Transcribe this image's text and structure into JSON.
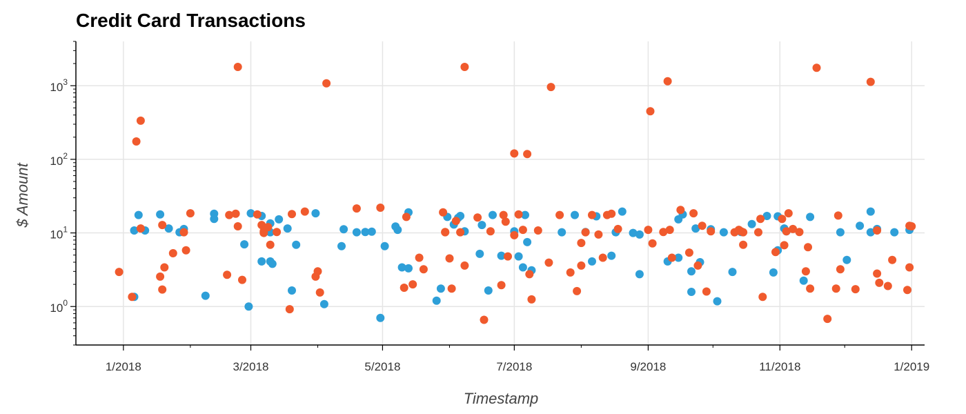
{
  "chart_data": {
    "type": "scatter",
    "title": "Credit Card Transactions",
    "xlabel": "Timestamp",
    "ylabel": "$ Amount",
    "yscale": "log",
    "ylim": [
      0.3,
      4000
    ],
    "xlim": [
      "2017-12-10",
      "2019-01-07"
    ],
    "grid": true,
    "x_ticks": [
      {
        "date": "2018-01-01",
        "label": "1/2018"
      },
      {
        "date": "2018-03-01",
        "label": "3/2018"
      },
      {
        "date": "2018-05-01",
        "label": "5/2018"
      },
      {
        "date": "2018-07-01",
        "label": "7/2018"
      },
      {
        "date": "2018-09-01",
        "label": "9/2018"
      },
      {
        "date": "2018-11-01",
        "label": "11/2018"
      },
      {
        "date": "2019-01-01",
        "label": "1/2019"
      }
    ],
    "y_ticks": [
      {
        "value": 1,
        "base": "10",
        "exp": "0"
      },
      {
        "value": 10,
        "base": "10",
        "exp": "1"
      },
      {
        "value": 100,
        "base": "10",
        "exp": "2"
      },
      {
        "value": 1000,
        "base": "10",
        "exp": "3"
      }
    ],
    "series": [
      {
        "color": "#2e9fd8",
        "points": [
          [
            "2018-01-06",
            1.35
          ],
          [
            "2018-01-06",
            10.8
          ],
          [
            "2018-01-08",
            17.5
          ],
          [
            "2018-01-11",
            10.8
          ],
          [
            "2018-01-18",
            17.8
          ],
          [
            "2018-01-22",
            11.5
          ],
          [
            "2018-01-27",
            10.2
          ],
          [
            "2018-01-29",
            11.3
          ],
          [
            "2018-02-08",
            1.4
          ],
          [
            "2018-02-12",
            18.2
          ],
          [
            "2018-02-12",
            15.5
          ],
          [
            "2018-02-26",
            7.0
          ],
          [
            "2018-02-28",
            1.0
          ],
          [
            "2018-03-01",
            18.5
          ],
          [
            "2018-03-06",
            17.0
          ],
          [
            "2018-03-06",
            4.1
          ],
          [
            "2018-03-10",
            13.5
          ],
          [
            "2018-03-10",
            10.2
          ],
          [
            "2018-03-10",
            4.1
          ],
          [
            "2018-03-11",
            3.8
          ],
          [
            "2018-03-14",
            15.3
          ],
          [
            "2018-03-18",
            11.5
          ],
          [
            "2018-03-20",
            1.65
          ],
          [
            "2018-03-22",
            6.9
          ],
          [
            "2018-03-31",
            18.5
          ],
          [
            "2018-04-04",
            1.08
          ],
          [
            "2018-04-12",
            6.6
          ],
          [
            "2018-04-13",
            11.2
          ],
          [
            "2018-04-19",
            10.2
          ],
          [
            "2018-04-23",
            10.3
          ],
          [
            "2018-04-26",
            10.4
          ],
          [
            "2018-04-30",
            0.7
          ],
          [
            "2018-05-02",
            6.6
          ],
          [
            "2018-05-07",
            12.2
          ],
          [
            "2018-05-08",
            11.0
          ],
          [
            "2018-05-10",
            3.4
          ],
          [
            "2018-05-13",
            3.3
          ],
          [
            "2018-05-13",
            19.0
          ],
          [
            "2018-05-26",
            1.2
          ],
          [
            "2018-05-28",
            1.75
          ],
          [
            "2018-05-31",
            16.5
          ],
          [
            "2018-06-03",
            13.0
          ],
          [
            "2018-06-05",
            16.0
          ],
          [
            "2018-06-06",
            17.0
          ],
          [
            "2018-06-08",
            10.5
          ],
          [
            "2018-06-15",
            5.2
          ],
          [
            "2018-06-16",
            12.8
          ],
          [
            "2018-06-19",
            1.65
          ],
          [
            "2018-06-21",
            17.5
          ],
          [
            "2018-06-25",
            4.9
          ],
          [
            "2018-07-01",
            10.5
          ],
          [
            "2018-07-03",
            4.8
          ],
          [
            "2018-07-05",
            3.4
          ],
          [
            "2018-07-06",
            17.5
          ],
          [
            "2018-07-07",
            7.5
          ],
          [
            "2018-07-09",
            3.1
          ],
          [
            "2018-07-23",
            10.2
          ],
          [
            "2018-07-29",
            17.5
          ],
          [
            "2018-08-03",
            10.3
          ],
          [
            "2018-08-06",
            4.1
          ],
          [
            "2018-08-08",
            16.8
          ],
          [
            "2018-08-15",
            4.9
          ],
          [
            "2018-08-17",
            10.2
          ],
          [
            "2018-08-20",
            19.5
          ],
          [
            "2018-08-25",
            10.0
          ],
          [
            "2018-08-28",
            2.75
          ],
          [
            "2018-08-28",
            9.5
          ],
          [
            "2018-09-10",
            4.1
          ],
          [
            "2018-09-15",
            4.6
          ],
          [
            "2018-09-15",
            15.3
          ],
          [
            "2018-09-17",
            17.8
          ],
          [
            "2018-09-21",
            3.0
          ],
          [
            "2018-09-21",
            1.58
          ],
          [
            "2018-09-23",
            11.5
          ],
          [
            "2018-09-25",
            4.0
          ],
          [
            "2018-09-30",
            11.2
          ],
          [
            "2018-10-03",
            1.18
          ],
          [
            "2018-10-06",
            10.2
          ],
          [
            "2018-10-10",
            2.95
          ],
          [
            "2018-10-14",
            10.3
          ],
          [
            "2018-10-19",
            13.2
          ],
          [
            "2018-10-26",
            17.0
          ],
          [
            "2018-10-29",
            2.9
          ],
          [
            "2018-10-31",
            16.8
          ],
          [
            "2018-10-31",
            5.8
          ],
          [
            "2018-11-03",
            11.5
          ],
          [
            "2018-11-04",
            10.5
          ],
          [
            "2018-11-12",
            2.25
          ],
          [
            "2018-11-15",
            16.5
          ],
          [
            "2018-11-29",
            10.2
          ],
          [
            "2018-12-02",
            4.3
          ],
          [
            "2018-12-08",
            12.5
          ],
          [
            "2018-12-13",
            19.5
          ],
          [
            "2018-12-13",
            10.2
          ],
          [
            "2018-12-16",
            11.3
          ],
          [
            "2018-12-24",
            10.2
          ],
          [
            "2018-12-31",
            11.0
          ]
        ]
      },
      {
        "color": "#f05a2d",
        "points": [
          [
            "2017-12-30",
            2.95
          ],
          [
            "2018-01-05",
            1.35
          ],
          [
            "2018-01-07",
            175
          ],
          [
            "2018-01-09",
            335
          ],
          [
            "2018-01-09",
            11.5
          ],
          [
            "2018-01-18",
            2.55
          ],
          [
            "2018-01-19",
            12.8
          ],
          [
            "2018-01-19",
            1.7
          ],
          [
            "2018-01-20",
            3.4
          ],
          [
            "2018-01-24",
            5.3
          ],
          [
            "2018-01-29",
            10.2
          ],
          [
            "2018-01-30",
            5.8
          ],
          [
            "2018-02-01",
            18.5
          ],
          [
            "2018-02-18",
            2.7
          ],
          [
            "2018-02-19",
            17.5
          ],
          [
            "2018-02-22",
            18.2
          ],
          [
            "2018-02-23",
            1800
          ],
          [
            "2018-02-23",
            12.3
          ],
          [
            "2018-02-25",
            2.3
          ],
          [
            "2018-03-04",
            17.8
          ],
          [
            "2018-03-06",
            12.8
          ],
          [
            "2018-03-07",
            10.5
          ],
          [
            "2018-03-07",
            10.0
          ],
          [
            "2018-03-09",
            12.0
          ],
          [
            "2018-03-10",
            6.9
          ],
          [
            "2018-03-13",
            10.3
          ],
          [
            "2018-03-19",
            0.92
          ],
          [
            "2018-03-20",
            18.0
          ],
          [
            "2018-03-26",
            19.5
          ],
          [
            "2018-03-31",
            2.55
          ],
          [
            "2018-04-01",
            3.0
          ],
          [
            "2018-04-02",
            1.55
          ],
          [
            "2018-04-05",
            1080
          ],
          [
            "2018-04-19",
            21.5
          ],
          [
            "2018-04-30",
            22.0
          ],
          [
            "2018-05-11",
            1.8
          ],
          [
            "2018-05-12",
            16.5
          ],
          [
            "2018-05-15",
            2.0
          ],
          [
            "2018-05-18",
            4.6
          ],
          [
            "2018-05-20",
            3.2
          ],
          [
            "2018-05-29",
            19.0
          ],
          [
            "2018-05-30",
            10.3
          ],
          [
            "2018-05-30",
            10.2
          ],
          [
            "2018-06-01",
            4.5
          ],
          [
            "2018-06-02",
            1.75
          ],
          [
            "2018-06-04",
            14.5
          ],
          [
            "2018-06-06",
            10.2
          ],
          [
            "2018-06-08",
            1800
          ],
          [
            "2018-06-08",
            3.6
          ],
          [
            "2018-06-14",
            16.2
          ],
          [
            "2018-06-17",
            0.66
          ],
          [
            "2018-06-20",
            10.5
          ],
          [
            "2018-06-25",
            1.95
          ],
          [
            "2018-06-26",
            17.5
          ],
          [
            "2018-06-27",
            14.2
          ],
          [
            "2018-06-28",
            4.8
          ],
          [
            "2018-07-01",
            120
          ],
          [
            "2018-07-01",
            9.3
          ],
          [
            "2018-07-03",
            17.8
          ],
          [
            "2018-07-05",
            11.0
          ],
          [
            "2018-07-07",
            118
          ],
          [
            "2018-07-08",
            2.75
          ],
          [
            "2018-07-09",
            1.25
          ],
          [
            "2018-07-12",
            10.8
          ],
          [
            "2018-07-17",
            3.95
          ],
          [
            "2018-07-18",
            960
          ],
          [
            "2018-07-22",
            17.5
          ],
          [
            "2018-07-27",
            2.9
          ],
          [
            "2018-07-30",
            1.62
          ],
          [
            "2018-08-01",
            3.6
          ],
          [
            "2018-08-01",
            7.3
          ],
          [
            "2018-08-03",
            10.2
          ],
          [
            "2018-08-06",
            17.5
          ],
          [
            "2018-08-09",
            9.5
          ],
          [
            "2018-08-11",
            4.6
          ],
          [
            "2018-08-13",
            17.5
          ],
          [
            "2018-08-15",
            18.2
          ],
          [
            "2018-08-18",
            11.3
          ],
          [
            "2018-09-01",
            11.0
          ],
          [
            "2018-09-02",
            450
          ],
          [
            "2018-09-03",
            7.2
          ],
          [
            "2018-09-08",
            10.3
          ],
          [
            "2018-09-10",
            1150
          ],
          [
            "2018-09-11",
            11.0
          ],
          [
            "2018-09-12",
            4.6
          ],
          [
            "2018-09-16",
            20.5
          ],
          [
            "2018-09-20",
            5.4
          ],
          [
            "2018-09-22",
            18.5
          ],
          [
            "2018-09-24",
            3.6
          ],
          [
            "2018-09-26",
            12.5
          ],
          [
            "2018-09-28",
            1.6
          ],
          [
            "2018-09-30",
            10.5
          ],
          [
            "2018-10-11",
            10.2
          ],
          [
            "2018-10-13",
            11.0
          ],
          [
            "2018-10-14",
            10.5
          ],
          [
            "2018-10-15",
            10.2
          ],
          [
            "2018-10-15",
            6.9
          ],
          [
            "2018-10-22",
            10.2
          ],
          [
            "2018-10-23",
            15.5
          ],
          [
            "2018-10-24",
            1.35
          ],
          [
            "2018-10-30",
            5.5
          ],
          [
            "2018-11-02",
            15.5
          ],
          [
            "2018-11-03",
            6.8
          ],
          [
            "2018-11-04",
            10.5
          ],
          [
            "2018-11-05",
            18.5
          ],
          [
            "2018-11-07",
            11.3
          ],
          [
            "2018-11-10",
            10.3
          ],
          [
            "2018-11-13",
            3.0
          ],
          [
            "2018-11-14",
            6.4
          ],
          [
            "2018-11-15",
            1.75
          ],
          [
            "2018-11-18",
            1750
          ],
          [
            "2018-11-23",
            0.68
          ],
          [
            "2018-11-27",
            1.75
          ],
          [
            "2018-11-28",
            17.2
          ],
          [
            "2018-11-29",
            3.2
          ],
          [
            "2018-12-06",
            1.72
          ],
          [
            "2018-12-13",
            1130
          ],
          [
            "2018-12-16",
            10.8
          ],
          [
            "2018-12-16",
            2.8
          ],
          [
            "2018-12-17",
            2.1
          ],
          [
            "2018-12-21",
            1.9
          ],
          [
            "2018-12-23",
            4.3
          ],
          [
            "2018-12-30",
            1.68
          ],
          [
            "2018-12-31",
            12.5
          ],
          [
            "2018-12-31",
            3.4
          ],
          [
            "2019-01-01",
            12.3
          ]
        ]
      }
    ]
  }
}
